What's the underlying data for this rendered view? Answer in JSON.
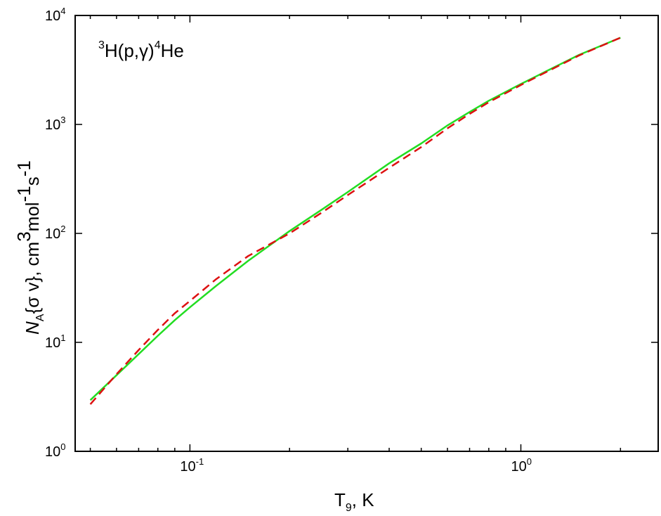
{
  "chart_data": {
    "type": "line",
    "title": {
      "pre_sup": "3",
      "main_a": "H(p,",
      "greek": "γ",
      "main_b": ")",
      "sup": "4",
      "main_c": "He"
    },
    "xlabel": {
      "main": "T",
      "sub": "9",
      "unit": ", K"
    },
    "ylabel": {
      "n": "N",
      "n_sub": "A",
      "brace": "{σ v}, cm",
      "sup1": "3",
      "mol": "mol",
      "sup2": "-1",
      "s": "s",
      "sup3": "-1"
    },
    "x_scale": "log",
    "y_scale": "log",
    "xlim": [
      0.045,
      2.6
    ],
    "ylim": [
      1,
      10000
    ],
    "grid": false,
    "x_ticks": [
      {
        "value": 0.1,
        "base": "10",
        "exp": "-1"
      },
      {
        "value": 1,
        "base": "10",
        "exp": "0"
      }
    ],
    "y_ticks": [
      {
        "value": 1,
        "base": "10",
        "exp": "0"
      },
      {
        "value": 10,
        "base": "10",
        "exp": "1"
      },
      {
        "value": 100,
        "base": "10",
        "exp": "2"
      },
      {
        "value": 1000,
        "base": "10",
        "exp": "3"
      },
      {
        "value": 10000,
        "base": "10",
        "exp": "4"
      }
    ],
    "series": [
      {
        "color": "#22dd22",
        "style": "solid",
        "x": [
          0.05,
          0.06,
          0.07,
          0.08,
          0.09,
          0.1,
          0.12,
          0.15,
          0.2,
          0.25,
          0.3,
          0.4,
          0.5,
          0.6,
          0.7,
          0.8,
          1.0,
          1.2,
          1.5,
          2.0
        ],
        "y": [
          2.95,
          5.0,
          7.8,
          11.5,
          16.0,
          21.0,
          33.0,
          56.0,
          105,
          165,
          240,
          440,
          670,
          980,
          1300,
          1650,
          2350,
          3100,
          4350,
          6250
        ]
      },
      {
        "color": "#dd1111",
        "style": "dashed",
        "x": [
          0.05,
          0.06,
          0.07,
          0.08,
          0.09,
          0.1,
          0.12,
          0.15,
          0.2,
          0.25,
          0.3,
          0.4,
          0.5,
          0.6,
          0.7,
          0.8,
          1.0,
          1.2,
          1.5,
          2.0
        ],
        "y": [
          2.7,
          5.1,
          8.5,
          13.0,
          18.5,
          24.0,
          38.0,
          62.0,
          100,
          155,
          225,
          400,
          620,
          920,
          1250,
          1600,
          2300,
          3050,
          4300,
          6250
        ]
      }
    ]
  }
}
